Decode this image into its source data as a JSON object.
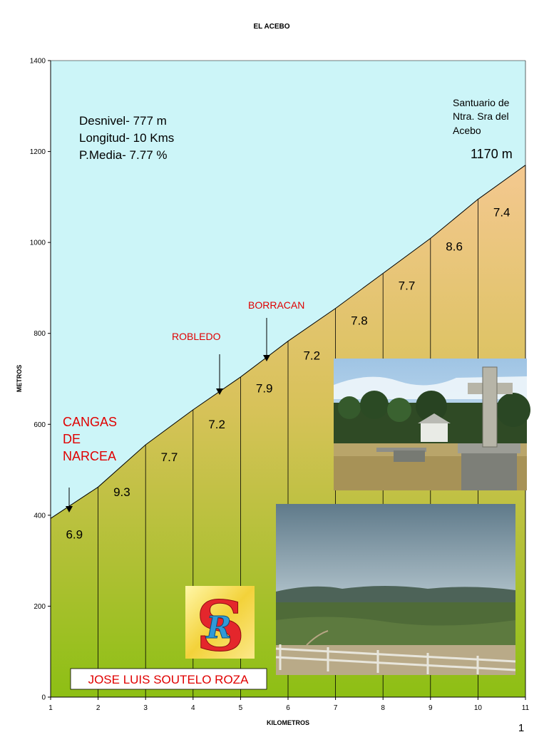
{
  "chart_data": {
    "type": "area",
    "title": "EL ACEBO",
    "xlabel": "KILOMETROS",
    "ylabel": "METROS",
    "xlim": [
      1,
      11
    ],
    "ylim": [
      0,
      1400
    ],
    "x_ticks": [
      "1",
      "2",
      "3",
      "4",
      "5",
      "6",
      "7",
      "8",
      "9",
      "10",
      "11"
    ],
    "y_ticks": [
      "0",
      "200",
      "400",
      "600",
      "800",
      "1000",
      "1200",
      "1400"
    ],
    "grid": false,
    "x": [
      1,
      2,
      3,
      4,
      5,
      6,
      7,
      8,
      9,
      10,
      11
    ],
    "elevation": [
      393,
      462,
      555,
      632,
      704,
      783,
      855,
      932,
      1009,
      1095,
      1170
    ],
    "segment_gradients": [
      "6.9",
      "9.3",
      "7.7",
      "7.2",
      "7.9",
      "7.2",
      "7.8",
      "7.7",
      "8.6",
      "7.4"
    ],
    "stats": [
      "Desnivel- 777 m",
      "Longitud- 10 Kms",
      "P.Media- 7.77 %"
    ],
    "summit": {
      "name_lines": [
        "Santuario de",
        "Ntra. Sra del",
        "Acebo"
      ],
      "altitude_label": "1170 m"
    },
    "places": [
      {
        "lines": [
          "CANGAS",
          "DE",
          "NARCEA"
        ],
        "km": 1.4
      },
      {
        "lines": [
          "ROBLEDO"
        ],
        "km": 4.55
      },
      {
        "lines": [
          "BORRACAN"
        ],
        "km": 5.55
      }
    ],
    "author": "JOSE LUIS SOUTELO ROZA",
    "page_number": "1",
    "colors": {
      "sky": "#ccf5f8",
      "low": "#8dbf14",
      "high": "#f4c890",
      "place_label": "#e00000",
      "author_label": "#e00000"
    }
  },
  "photos": {
    "top_icon": "sanctuary-cross-photo",
    "bottom_icon": "valley-landscape-photo",
    "logo_icon": "sr-logo-icon"
  }
}
